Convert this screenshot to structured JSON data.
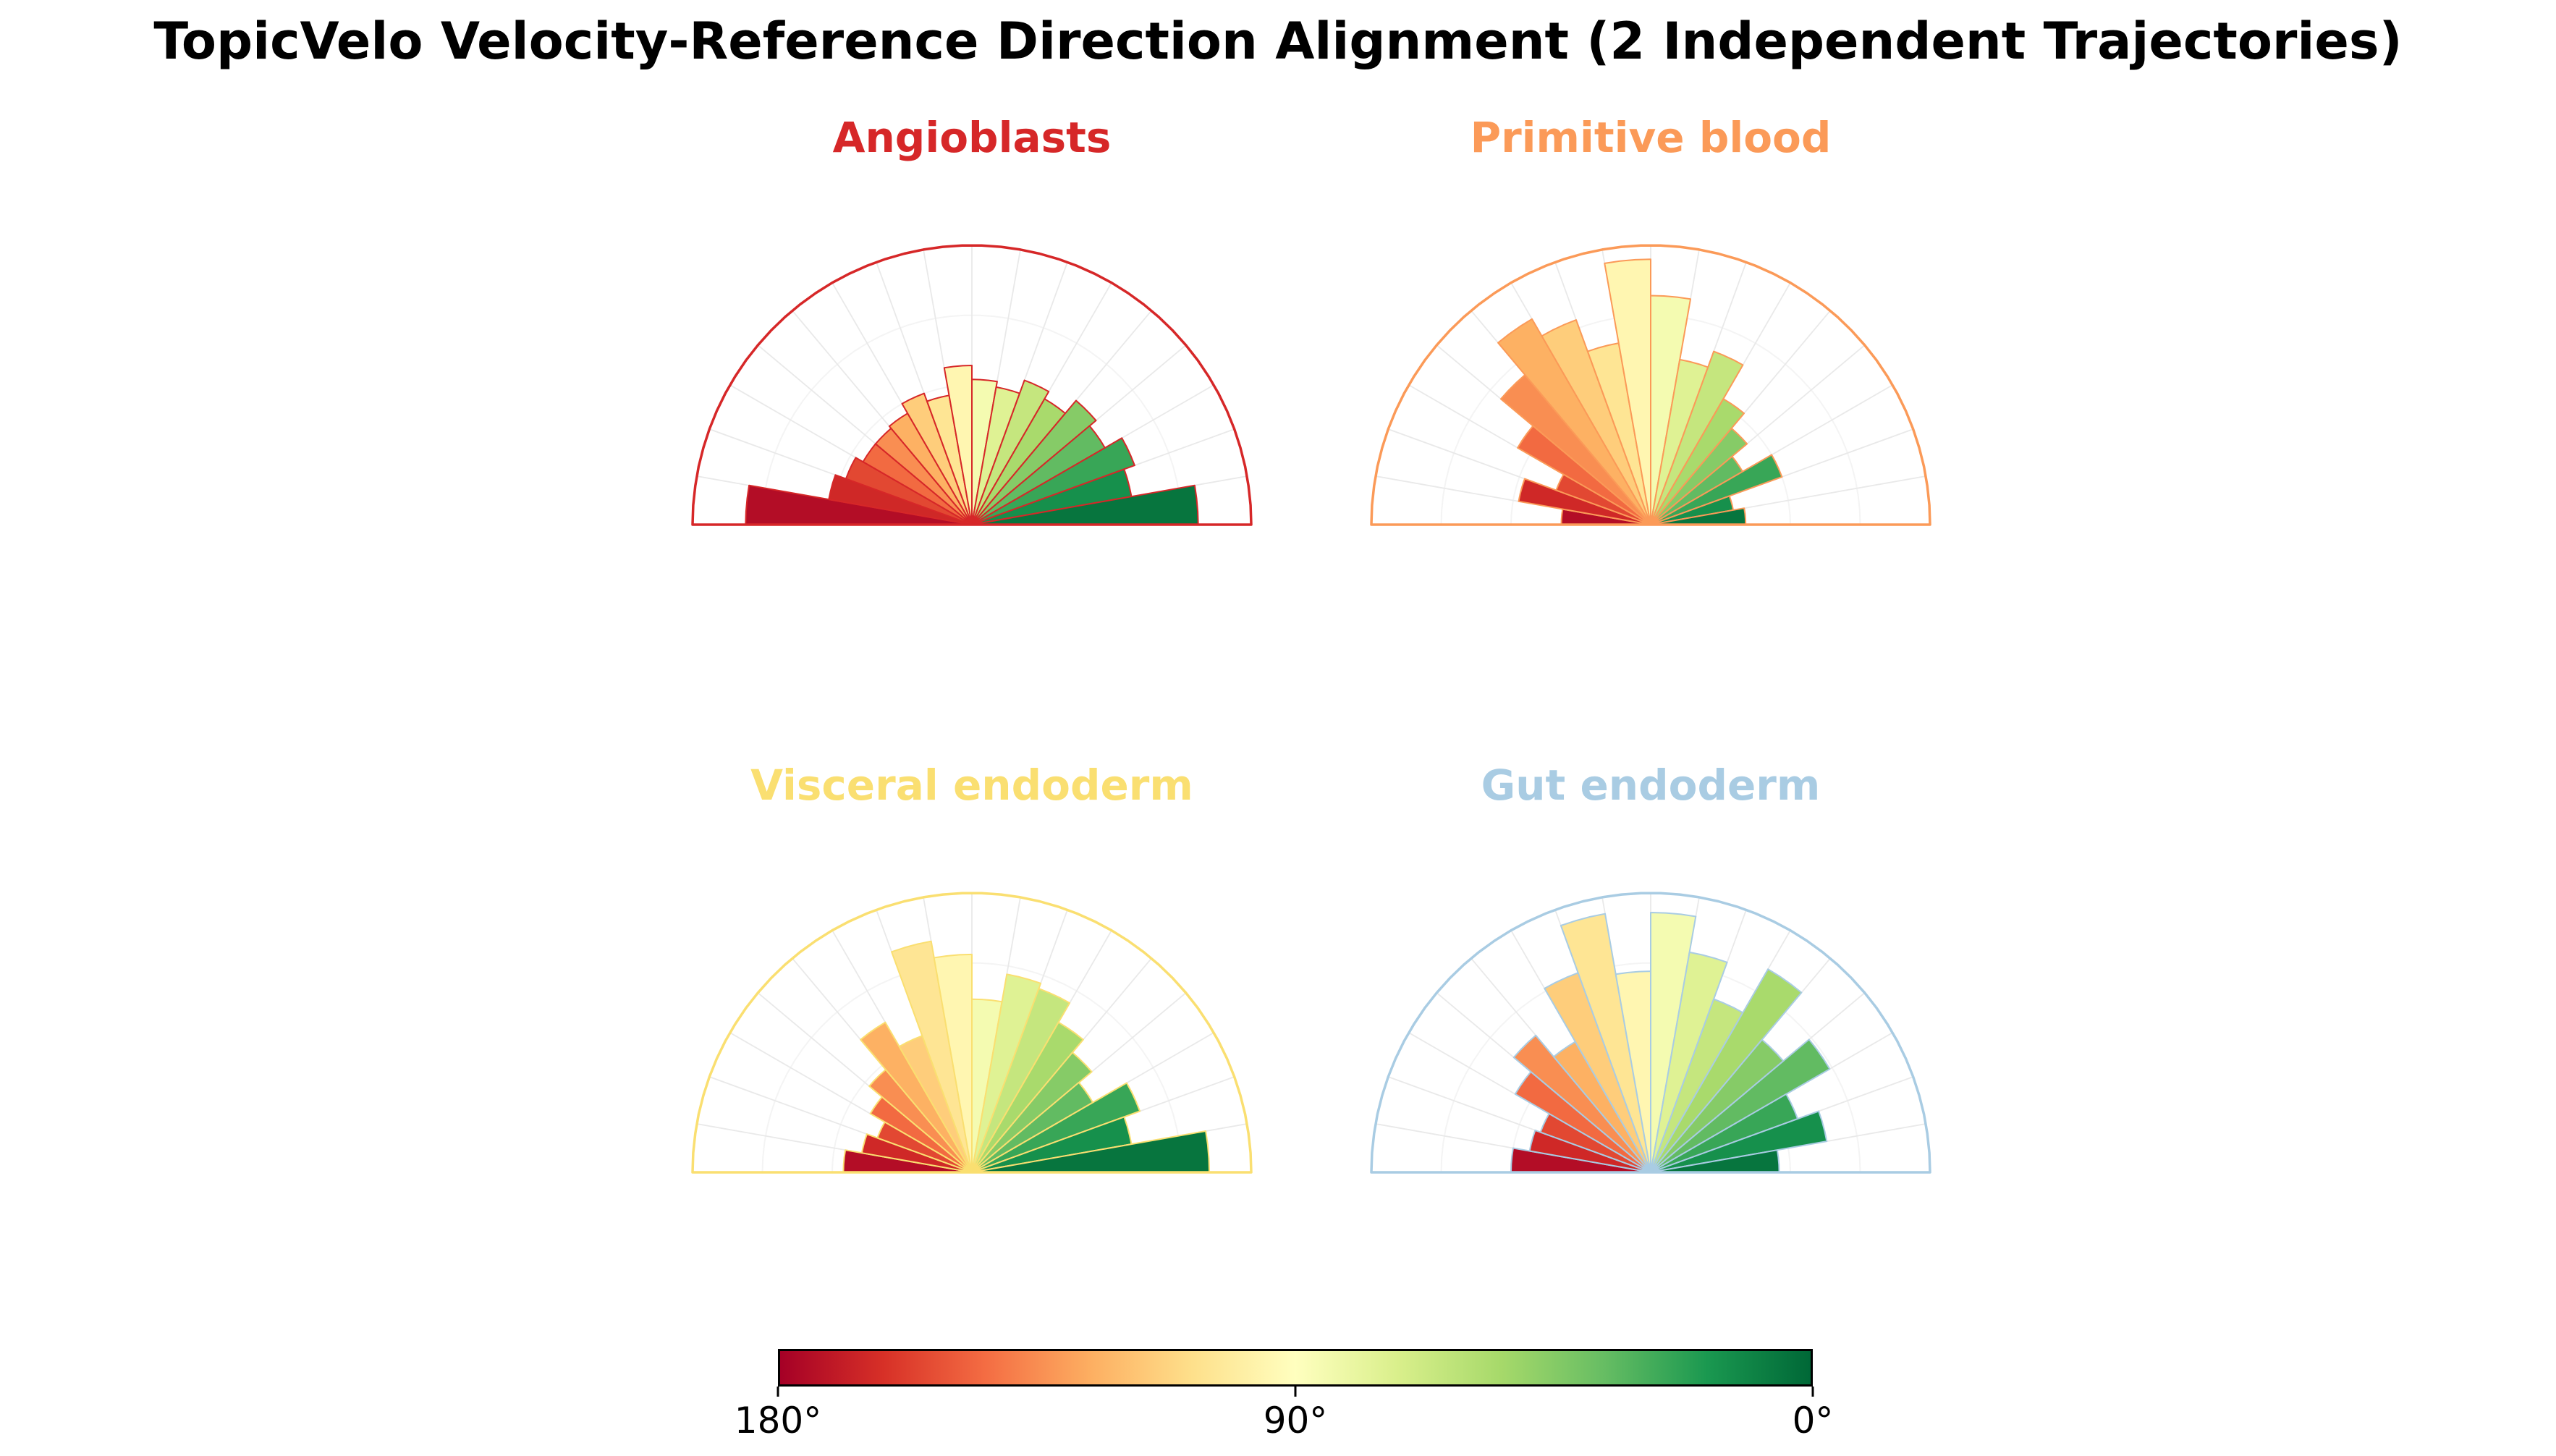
{
  "figure": {
    "title": "TopicVelo Velocity-Reference Direction Alignment (2 Independent Trajectories)",
    "title_color": "#000000",
    "background": "#ffffff"
  },
  "colorbar": {
    "colormap": "RdYlGn",
    "ticks": [
      "180°",
      "90°",
      "0°"
    ],
    "stops": [
      [
        0.0,
        "#a50026"
      ],
      [
        0.1,
        "#d73027"
      ],
      [
        0.2,
        "#f46d43"
      ],
      [
        0.3,
        "#fdae61"
      ],
      [
        0.4,
        "#fee08b"
      ],
      [
        0.5,
        "#ffffbf"
      ],
      [
        0.6,
        "#d9ef8b"
      ],
      [
        0.7,
        "#a6d96a"
      ],
      [
        0.8,
        "#66bd63"
      ],
      [
        0.9,
        "#1a9850"
      ],
      [
        1.0,
        "#006837"
      ]
    ],
    "grid_color": "#e9e9e9"
  },
  "chart_data": [
    {
      "type": "polar_bar_half_rose",
      "title": "Angioblasts",
      "accent": "#d62728",
      "angle_range_deg": [
        180,
        0
      ],
      "bin_width_deg": 10,
      "bin_centers_deg": [
        175,
        165,
        155,
        145,
        135,
        125,
        115,
        105,
        95,
        85,
        75,
        65,
        55,
        45,
        35,
        25,
        15,
        5
      ],
      "values_normalized": [
        0.81,
        0.52,
        0.48,
        0.45,
        0.45,
        0.46,
        0.5,
        0.47,
        0.57,
        0.52,
        0.5,
        0.55,
        0.52,
        0.58,
        0.55,
        0.62,
        0.58,
        0.81
      ],
      "radial_unit": "fraction_of_max_radius",
      "color_by": "angle_RdYlGn_180red_to_0green"
    },
    {
      "type": "polar_bar_half_rose",
      "title": "Primitive blood",
      "accent": "#fb9a58",
      "angle_range_deg": [
        180,
        0
      ],
      "bin_width_deg": 10,
      "bin_centers_deg": [
        175,
        165,
        155,
        145,
        135,
        125,
        115,
        105,
        95,
        85,
        75,
        65,
        55,
        45,
        35,
        25,
        15,
        5
      ],
      "values_normalized": [
        0.32,
        0.48,
        0.36,
        0.55,
        0.7,
        0.85,
        0.78,
        0.66,
        0.95,
        0.82,
        0.6,
        0.66,
        0.52,
        0.45,
        0.38,
        0.5,
        0.3,
        0.34
      ],
      "radial_unit": "fraction_of_max_radius",
      "color_by": "angle_RdYlGn_180red_to_0green"
    },
    {
      "type": "polar_bar_half_rose",
      "title": "Visceral endoderm",
      "accent": "#fadf71",
      "angle_range_deg": [
        180,
        0
      ],
      "bin_width_deg": 10,
      "bin_centers_deg": [
        175,
        165,
        155,
        145,
        135,
        125,
        115,
        105,
        95,
        85,
        75,
        65,
        55,
        45,
        35,
        25,
        15,
        5
      ],
      "values_normalized": [
        0.46,
        0.4,
        0.36,
        0.42,
        0.48,
        0.62,
        0.52,
        0.84,
        0.78,
        0.62,
        0.72,
        0.7,
        0.62,
        0.56,
        0.5,
        0.64,
        0.58,
        0.85
      ],
      "radial_unit": "fraction_of_max_radius",
      "color_by": "angle_RdYlGn_180red_to_0green"
    },
    {
      "type": "polar_bar_half_rose",
      "title": "Gut endoderm",
      "accent": "#a9cce3",
      "angle_range_deg": [
        180,
        0
      ],
      "bin_width_deg": 10,
      "bin_centers_deg": [
        175,
        165,
        155,
        145,
        135,
        125,
        115,
        105,
        95,
        85,
        75,
        65,
        55,
        45,
        35,
        25,
        15,
        5
      ],
      "values_normalized": [
        0.5,
        0.44,
        0.42,
        0.56,
        0.64,
        0.54,
        0.76,
        0.94,
        0.72,
        0.93,
        0.8,
        0.66,
        0.84,
        0.62,
        0.74,
        0.56,
        0.64,
        0.46
      ],
      "radial_unit": "fraction_of_max_radius",
      "color_by": "angle_RdYlGn_180red_to_0green"
    }
  ]
}
